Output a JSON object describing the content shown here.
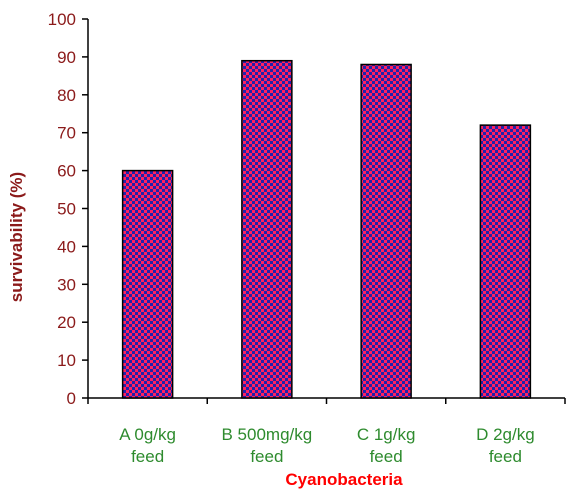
{
  "chart_data": {
    "type": "bar",
    "categories": [
      [
        "A 0g/kg",
        "feed"
      ],
      [
        "B 500mg/kg",
        "feed"
      ],
      [
        "C 1g/kg",
        "feed"
      ],
      [
        "D 2g/kg",
        "feed"
      ]
    ],
    "values": [
      60,
      89,
      88,
      72
    ],
    "xlabel": "Cyanobacteria",
    "ylabel": "survivability (%)",
    "ylim": [
      0,
      100
    ],
    "yticks": [
      0,
      10,
      20,
      30,
      40,
      50,
      60,
      70,
      80,
      90,
      100
    ],
    "grid": false,
    "legend": "none",
    "colors": {
      "bar_base": "#2222aa",
      "bar_pattern": "#ff2060",
      "bar_edge": "#000000",
      "ytick_text": "#8b1a1a",
      "xtick_text": "#2e8b2e",
      "xlabel_text": "#ff0000",
      "ylabel_text": "#8b1a1a"
    }
  }
}
